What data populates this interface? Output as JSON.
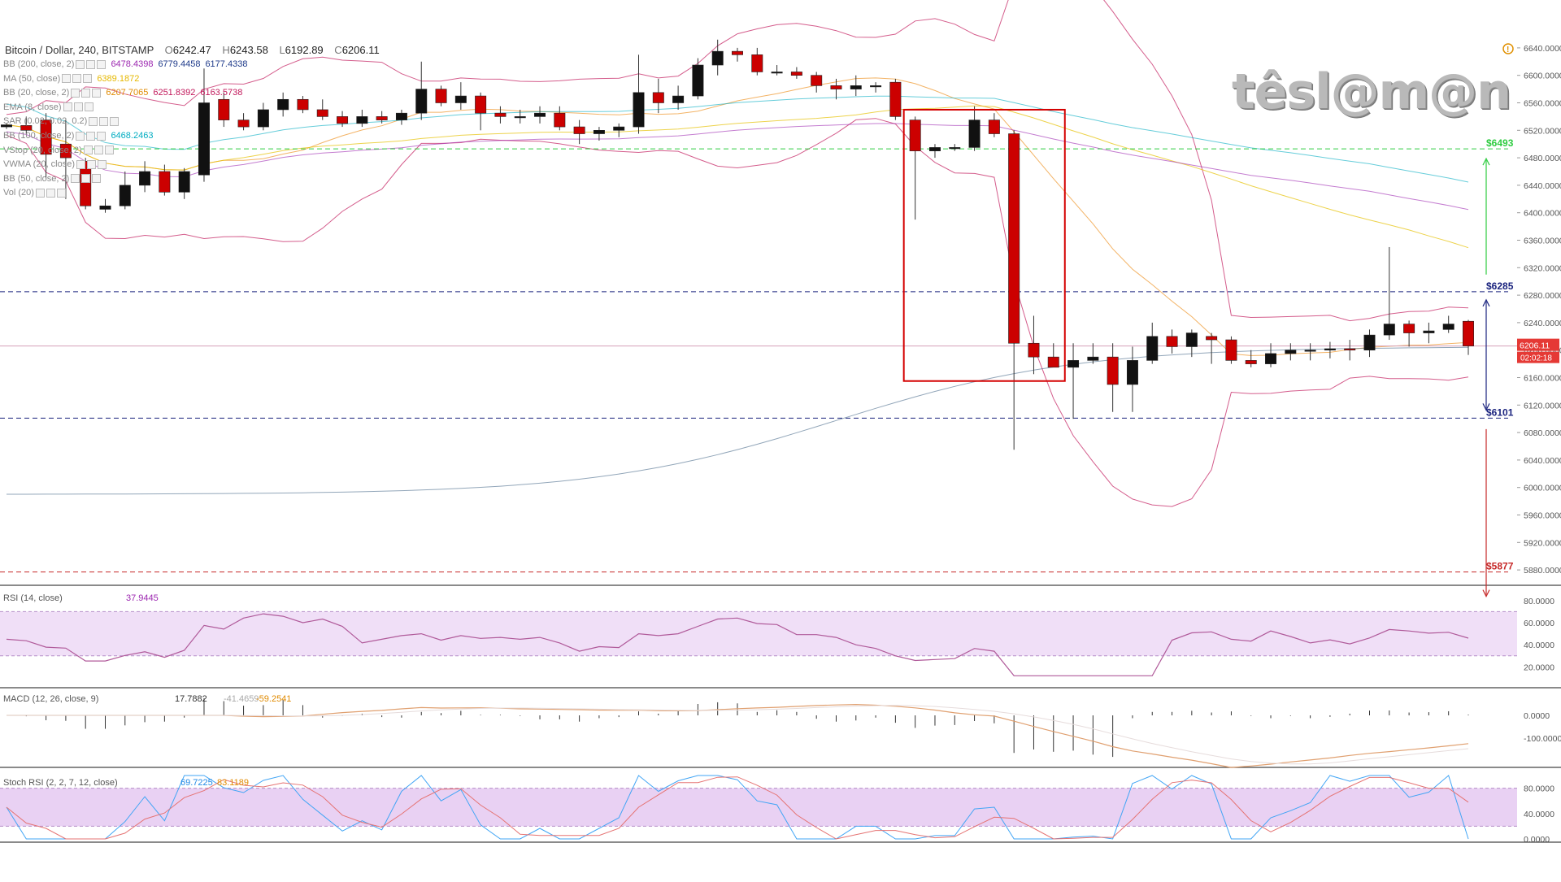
{
  "header": {
    "symbol": "Bitcoin / Dollar, 240, BITSTAMP",
    "open_label": "O",
    "open": "6242.47",
    "high_label": "H",
    "high": "6243.58",
    "low_label": "L",
    "low": "6192.89",
    "close_label": "C",
    "close": "6206.11"
  },
  "logo": "têsl@m@n",
  "indicators": [
    {
      "label": "BB (200, close, 2)",
      "values": [
        "6478.4398",
        "6779.4458",
        "6177.4338"
      ],
      "colors": [
        "#9c27b0",
        "#1e3a8a",
        "#1e3a8a"
      ]
    },
    {
      "label": "MA (50, close)",
      "values": [
        "6389.1872"
      ],
      "colors": [
        "#e6b800"
      ]
    },
    {
      "label": "BB (20, close, 2)",
      "values": [
        "6207.7065",
        "6251.8392",
        "6163.5738"
      ],
      "colors": [
        "#e08a00",
        "#c2185b",
        "#c2185b"
      ]
    },
    {
      "label": "EMA (8, close)",
      "values": [],
      "colors": []
    },
    {
      "label": "SAR (0.02, 0.02, 0.2)",
      "values": [],
      "colors": []
    },
    {
      "label": "BB (100, close, 2)",
      "values": [
        "6468.2463"
      ],
      "colors": [
        "#00acc1"
      ]
    },
    {
      "label": "VStop (20, close, 2)",
      "values": [],
      "colors": []
    },
    {
      "label": "VWMA (20, close)",
      "values": [],
      "colors": []
    },
    {
      "label": "BB (50, close, 2)",
      "values": [],
      "colors": []
    },
    {
      "label": "Vol (20)",
      "values": [],
      "colors": []
    }
  ],
  "price_axis": {
    "ticks": [
      "6640.0000",
      "6600.0000",
      "6560.0000",
      "6520.0000",
      "6480.0000",
      "6440.0000",
      "6400.0000",
      "6360.0000",
      "6320.0000",
      "6280.0000",
      "6240.0000",
      "6200.0000",
      "6160.0000",
      "6120.0000",
      "6080.0000",
      "6040.0000",
      "6000.0000",
      "5960.0000",
      "5920.0000",
      "5880.0000"
    ],
    "last_price": "6206.11",
    "countdown": "02:02:18"
  },
  "levels": [
    {
      "label": "$6493",
      "value": 6493,
      "color": "#2ecc40"
    },
    {
      "label": "$6285",
      "value": 6285,
      "color": "#1a237e"
    },
    {
      "label": "$6101",
      "value": 6101,
      "color": "#1a237e"
    },
    {
      "label": "$5877",
      "value": 5877,
      "color": "#c62828"
    }
  ],
  "rsi": {
    "label": "RSI (14, close)",
    "value": "37.9445",
    "ticks": [
      "80.0000",
      "60.0000",
      "40.0000",
      "20.0000"
    ]
  },
  "macd": {
    "label": "MACD (12, 26, close, 9)",
    "values": [
      "17.7882",
      "-41.4659",
      "-59.2541"
    ],
    "ticks": [
      "0.0000",
      "-100.0000"
    ]
  },
  "stoch": {
    "label": "Stoch RSI (2, 2, 7, 12, close)",
    "values": [
      "69.7225",
      "83.1189"
    ],
    "ticks": [
      "80.0000",
      "40.0000",
      "0.0000"
    ]
  },
  "chart_data": {
    "type": "candlestick",
    "title": "Bitcoin / Dollar, 240, BITSTAMP",
    "ylim": [
      5860,
      6660
    ],
    "candles": [
      [
        6525,
        6530,
        6522,
        6528
      ],
      [
        6527,
        6540,
        6515,
        6520
      ],
      [
        6535,
        6545,
        6450,
        6485
      ],
      [
        6500,
        6535,
        6420,
        6480
      ],
      [
        6475,
        6480,
        6405,
        6410
      ],
      [
        6405,
        6420,
        6400,
        6410
      ],
      [
        6410,
        6460,
        6405,
        6440
      ],
      [
        6440,
        6475,
        6430,
        6460
      ],
      [
        6460,
        6470,
        6425,
        6430
      ],
      [
        6430,
        6465,
        6420,
        6460
      ],
      [
        6455,
        6610,
        6445,
        6560
      ],
      [
        6565,
        6575,
        6525,
        6535
      ],
      [
        6535,
        6545,
        6520,
        6525
      ],
      [
        6525,
        6560,
        6520,
        6550
      ],
      [
        6550,
        6575,
        6540,
        6565
      ],
      [
        6565,
        6570,
        6545,
        6550
      ],
      [
        6550,
        6565,
        6535,
        6540
      ],
      [
        6540,
        6548,
        6525,
        6530
      ],
      [
        6530,
        6550,
        6525,
        6540
      ],
      [
        6540,
        6548,
        6530,
        6535
      ],
      [
        6535,
        6550,
        6528,
        6545
      ],
      [
        6545,
        6620,
        6535,
        6580
      ],
      [
        6580,
        6585,
        6555,
        6560
      ],
      [
        6560,
        6590,
        6550,
        6570
      ],
      [
        6570,
        6575,
        6520,
        6545
      ],
      [
        6545,
        6555,
        6530,
        6540
      ],
      [
        6540,
        6550,
        6530,
        6540
      ],
      [
        6540,
        6555,
        6530,
        6545
      ],
      [
        6545,
        6555,
        6520,
        6525
      ],
      [
        6525,
        6535,
        6500,
        6515
      ],
      [
        6515,
        6525,
        6505,
        6520
      ],
      [
        6520,
        6530,
        6510,
        6525
      ],
      [
        6525,
        6630,
        6515,
        6575
      ],
      [
        6575,
        6595,
        6545,
        6560
      ],
      [
        6560,
        6585,
        6550,
        6570
      ],
      [
        6570,
        6625,
        6565,
        6615
      ],
      [
        6615,
        6652,
        6600,
        6635
      ],
      [
        6635,
        6640,
        6620,
        6630
      ],
      [
        6630,
        6640,
        6600,
        6605
      ],
      [
        6605,
        6615,
        6600,
        6605
      ],
      [
        6605,
        6612,
        6595,
        6600
      ],
      [
        6600,
        6605,
        6575,
        6585
      ],
      [
        6585,
        6595,
        6565,
        6580
      ],
      [
        6580,
        6600,
        6570,
        6585
      ],
      [
        6585,
        6590,
        6575,
        6585
      ],
      [
        6590,
        6595,
        6535,
        6540
      ],
      [
        6535,
        6540,
        6390,
        6490
      ],
      [
        6490,
        6500,
        6480,
        6495
      ],
      [
        6495,
        6500,
        6490,
        6495
      ],
      [
        6495,
        6555,
        6490,
        6535
      ],
      [
        6535,
        6545,
        6510,
        6515
      ],
      [
        6515,
        6520,
        6055,
        6210
      ],
      [
        6210,
        6250,
        6165,
        6190
      ],
      [
        6190,
        6210,
        6175,
        6175
      ],
      [
        6175,
        6210,
        6100,
        6185
      ],
      [
        6185,
        6210,
        6180,
        6190
      ],
      [
        6190,
        6210,
        6110,
        6150
      ],
      [
        6150,
        6205,
        6110,
        6185
      ],
      [
        6185,
        6240,
        6180,
        6220
      ],
      [
        6220,
        6230,
        6195,
        6205
      ],
      [
        6205,
        6230,
        6190,
        6225
      ],
      [
        6220,
        6225,
        6180,
        6215
      ],
      [
        6215,
        6220,
        6180,
        6185
      ],
      [
        6185,
        6200,
        6175,
        6180
      ],
      [
        6180,
        6210,
        6175,
        6195
      ],
      [
        6195,
        6210,
        6185,
        6200
      ],
      [
        6200,
        6210,
        6185,
        6200
      ],
      [
        6200,
        6212,
        6188,
        6202
      ],
      [
        6202,
        6215,
        6185,
        6200
      ],
      [
        6200,
        6230,
        6190,
        6222
      ],
      [
        6222,
        6350,
        6215,
        6238
      ],
      [
        6238,
        6243,
        6205,
        6225
      ],
      [
        6225,
        6240,
        6210,
        6228
      ],
      [
        6230,
        6250,
        6225,
        6238
      ],
      [
        6242,
        6244,
        6193,
        6206
      ]
    ],
    "annotations": [
      "$6493",
      "$6285",
      "$6101",
      "$5877"
    ]
  }
}
